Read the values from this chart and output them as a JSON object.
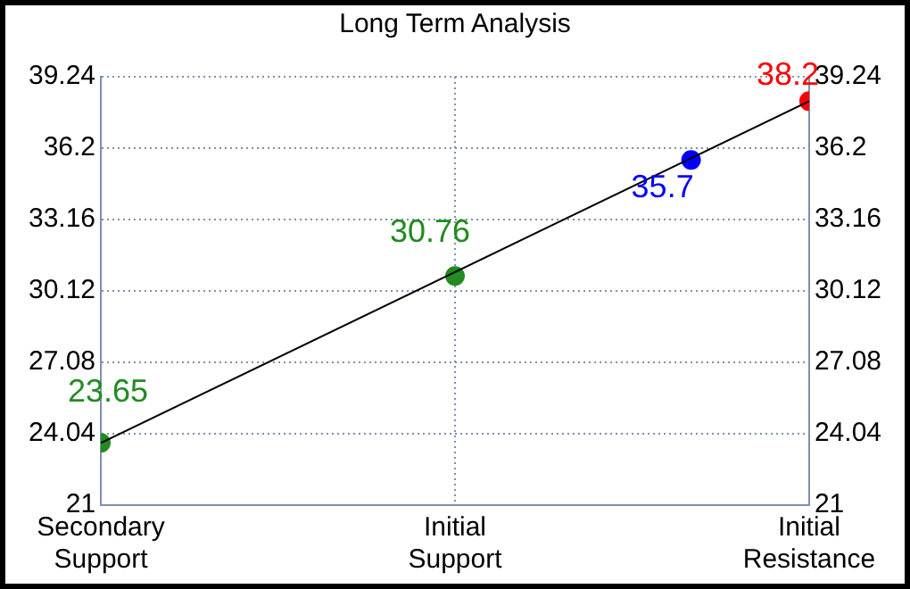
{
  "chart_data": {
    "type": "scatter",
    "title": "Long Term Analysis",
    "categories": [
      "Secondary Support",
      null,
      null,
      "Initial Support",
      null,
      null,
      "Initial Resistance"
    ],
    "ylim": [
      21,
      39.24
    ],
    "yticks": [
      21,
      24.04,
      27.08,
      30.12,
      33.16,
      36.2,
      39.24
    ],
    "y2lim": [
      21,
      39.24
    ],
    "y2ticks": [
      21,
      24.04,
      27.08,
      30.12,
      33.16,
      36.2,
      39.24
    ],
    "series": [
      {
        "type": "line",
        "color": "#000000",
        "values": [
          23.65,
          null,
          null,
          null,
          null,
          null,
          38.2
        ],
        "marker": "none"
      },
      {
        "values": [
          23.65,
          null,
          null,
          30.76,
          null,
          35.7,
          38.2
        ],
        "value_labels": [
          "23.65",
          null,
          null,
          "30.76",
          null,
          "35.7",
          "38.2"
        ],
        "colors": [
          "#228b22",
          null,
          null,
          "#228b22",
          null,
          "#0000ff",
          "#ff0000"
        ],
        "marker": "circle"
      }
    ],
    "grid": true,
    "legend": false
  }
}
